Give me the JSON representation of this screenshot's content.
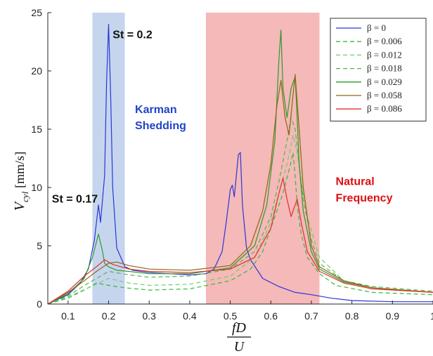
{
  "chart_data": {
    "type": "line",
    "xlim": [
      0.05,
      1.0
    ],
    "ylim": [
      0,
      25
    ],
    "xticks": [
      "0.1",
      "0.2",
      "0.3",
      "0.4",
      "0.5",
      "0.6",
      "0.7",
      "0.8",
      "0.9",
      "1"
    ],
    "yticks": [
      "0",
      "5",
      "10",
      "15",
      "20",
      "25"
    ],
    "grid": false,
    "legend_position": "top-right",
    "ylabel": {
      "main": "V",
      "sub": "cyl",
      "unit": "[mm/s]"
    },
    "xlabel": {
      "numerator": "fD",
      "denominator": "U"
    },
    "bands": [
      {
        "x0": 0.16,
        "x1": 0.24,
        "color": "#c6d5ee"
      },
      {
        "x0": 0.44,
        "x1": 0.72,
        "color": "#f4b9b8"
      }
    ],
    "annotations": [
      {
        "text": "St = 0.2",
        "color": "#111111",
        "x": 0.21,
        "y": 22.8
      },
      {
        "text": "Karman",
        "color": "#2044c8",
        "x": 0.265,
        "y": 16.4
      },
      {
        "text": "Shedding",
        "color": "#2044c8",
        "x": 0.265,
        "y": 15.0
      },
      {
        "text": "St = 0.17",
        "color": "#111111",
        "x": 0.06,
        "y": 8.7
      },
      {
        "text": "Natural",
        "color": "#dd1111",
        "x": 0.76,
        "y": 10.2
      },
      {
        "text": "Frequency",
        "color": "#dd1111",
        "x": 0.76,
        "y": 8.8
      }
    ],
    "series": [
      {
        "name": "β = 0",
        "color": "#2a36d6",
        "dash": "solid",
        "x": [
          0.05,
          0.1,
          0.13,
          0.15,
          0.165,
          0.175,
          0.18,
          0.19,
          0.195,
          0.2,
          0.205,
          0.21,
          0.22,
          0.24,
          0.26,
          0.3,
          0.35,
          0.4,
          0.44,
          0.46,
          0.48,
          0.49,
          0.5,
          0.505,
          0.51,
          0.52,
          0.525,
          0.53,
          0.54,
          0.55,
          0.58,
          0.62,
          0.66,
          0.7,
          0.75,
          0.8,
          0.9,
          1.0
        ],
        "y": [
          0.0,
          0.8,
          1.8,
          3.0,
          5.5,
          8.5,
          7.0,
          11.0,
          19.0,
          24.0,
          18.0,
          10.0,
          4.8,
          3.2,
          2.9,
          2.7,
          2.6,
          2.5,
          2.6,
          3.0,
          4.5,
          7.0,
          9.8,
          10.2,
          9.2,
          12.8,
          13.0,
          8.5,
          4.8,
          3.8,
          2.2,
          1.5,
          1.0,
          0.8,
          0.5,
          0.3,
          0.2,
          0.2
        ]
      },
      {
        "name": "β = 0.006",
        "color": "#39b83b",
        "dash": "dashed",
        "x": [
          0.05,
          0.1,
          0.14,
          0.17,
          0.2,
          0.24,
          0.3,
          0.4,
          0.5,
          0.55,
          0.58,
          0.61,
          0.63,
          0.645,
          0.655,
          0.66,
          0.665,
          0.675,
          0.69,
          0.72,
          0.76,
          0.85,
          1.0
        ],
        "y": [
          0.0,
          0.5,
          1.2,
          1.8,
          1.6,
          1.4,
          1.2,
          1.3,
          2.0,
          3.0,
          4.5,
          7.5,
          9.5,
          11.5,
          13.0,
          11.0,
          8.5,
          6.0,
          4.0,
          2.6,
          1.6,
          1.0,
          0.8
        ]
      },
      {
        "name": "β = 0.012",
        "color": "#6cd06a",
        "dash": "dashed",
        "x": [
          0.05,
          0.1,
          0.15,
          0.2,
          0.25,
          0.3,
          0.4,
          0.5,
          0.56,
          0.6,
          0.62,
          0.64,
          0.655,
          0.665,
          0.675,
          0.69,
          0.72,
          0.78,
          0.85,
          1.0
        ],
        "y": [
          0.0,
          0.6,
          1.4,
          2.2,
          1.8,
          1.6,
          1.7,
          2.4,
          4.0,
          7.0,
          9.5,
          12.0,
          14.5,
          13.0,
          10.5,
          7.5,
          4.0,
          2.0,
          1.4,
          1.0
        ]
      },
      {
        "name": "β = 0.018",
        "color": "#58b050",
        "dash": "dashed",
        "x": [
          0.05,
          0.1,
          0.15,
          0.2,
          0.25,
          0.3,
          0.4,
          0.5,
          0.56,
          0.6,
          0.62,
          0.64,
          0.65,
          0.66,
          0.67,
          0.68,
          0.7,
          0.72,
          0.78,
          0.85,
          1.0
        ],
        "y": [
          0.0,
          0.7,
          1.8,
          2.8,
          2.5,
          2.3,
          2.4,
          3.0,
          4.5,
          7.5,
          10.5,
          14.0,
          16.0,
          15.0,
          12.0,
          9.0,
          5.5,
          3.5,
          2.0,
          1.5,
          1.1
        ]
      },
      {
        "name": "β = 0.029",
        "color": "#2e9a2e",
        "dash": "solid",
        "x": [
          0.05,
          0.1,
          0.14,
          0.16,
          0.175,
          0.185,
          0.19,
          0.2,
          0.22,
          0.25,
          0.3,
          0.4,
          0.5,
          0.56,
          0.59,
          0.61,
          0.62,
          0.625,
          0.63,
          0.64,
          0.65,
          0.66,
          0.665,
          0.67,
          0.68,
          0.7,
          0.72,
          0.78,
          0.85,
          1.0
        ],
        "y": [
          0.0,
          0.9,
          2.2,
          4.0,
          6.0,
          4.5,
          3.5,
          3.2,
          2.9,
          2.8,
          2.6,
          2.6,
          3.1,
          5.0,
          8.5,
          14.0,
          21.0,
          23.5,
          18.5,
          16.0,
          18.5,
          19.5,
          16.0,
          12.0,
          8.0,
          4.5,
          3.0,
          1.9,
          1.4,
          1.0
        ]
      },
      {
        "name": "β = 0.058",
        "color": "#8a6a12",
        "dash": "solid",
        "x": [
          0.05,
          0.1,
          0.14,
          0.17,
          0.2,
          0.22,
          0.25,
          0.3,
          0.4,
          0.5,
          0.55,
          0.58,
          0.6,
          0.615,
          0.625,
          0.635,
          0.645,
          0.655,
          0.66,
          0.67,
          0.68,
          0.7,
          0.72,
          0.78,
          0.85,
          1.0
        ],
        "y": [
          0.0,
          1.0,
          2.0,
          2.8,
          3.5,
          3.6,
          3.3,
          3.0,
          2.9,
          3.3,
          5.0,
          8.0,
          12.0,
          17.0,
          19.2,
          16.0,
          14.5,
          18.0,
          19.7,
          15.0,
          10.0,
          5.0,
          3.2,
          2.0,
          1.4,
          1.0
        ]
      },
      {
        "name": "β = 0.086",
        "color": "#e03030",
        "dash": "solid",
        "x": [
          0.05,
          0.1,
          0.14,
          0.17,
          0.19,
          0.21,
          0.25,
          0.3,
          0.4,
          0.5,
          0.56,
          0.6,
          0.62,
          0.63,
          0.64,
          0.65,
          0.655,
          0.665,
          0.675,
          0.69,
          0.72,
          0.78,
          0.85,
          1.0
        ],
        "y": [
          0.0,
          1.1,
          2.4,
          3.2,
          3.8,
          3.4,
          3.0,
          2.8,
          2.7,
          3.0,
          4.0,
          6.5,
          9.5,
          10.8,
          9.0,
          7.5,
          8.0,
          9.0,
          7.0,
          4.5,
          2.8,
          1.8,
          1.3,
          1.0
        ]
      }
    ]
  }
}
